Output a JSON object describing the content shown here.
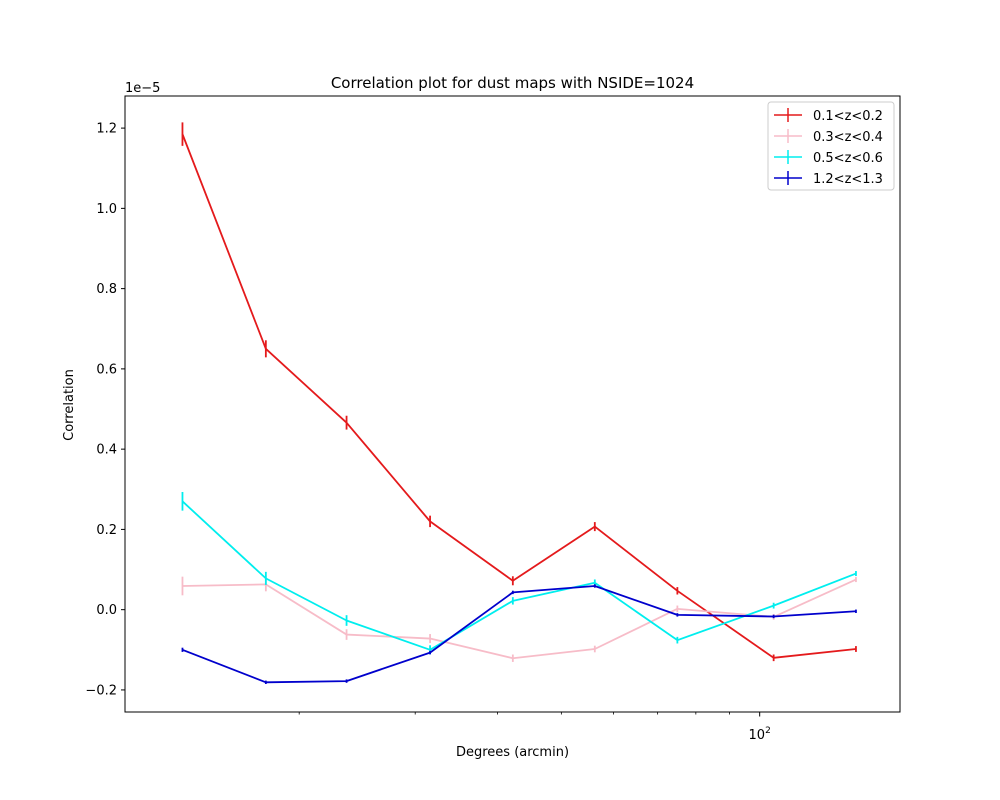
{
  "chart_data": {
    "type": "line",
    "title": "Correlation plot for dust maps with NSIDE=1024",
    "xlabel": "Degrees (arcmin)",
    "ylabel": "Correlation",
    "x_scale": "log",
    "xlim": [
      10.88,
      163.3
    ],
    "ylim": [
      -0.255,
      1.28
    ],
    "y_offset_label": "1e−5",
    "x_tick_major": [
      {
        "value": 100,
        "base": "10",
        "exp": "2"
      }
    ],
    "x_minor_ticks": [
      20,
      30,
      40,
      50,
      60,
      70,
      80,
      90
    ],
    "y_ticks": [
      {
        "value": -0.2,
        "label": "−0.2"
      },
      {
        "value": 0.0,
        "label": "0.0"
      },
      {
        "value": 0.2,
        "label": "0.2"
      },
      {
        "value": 0.4,
        "label": "0.4"
      },
      {
        "value": 0.6,
        "label": "0.6"
      },
      {
        "value": 0.8,
        "label": "0.8"
      },
      {
        "value": 1.0,
        "label": "1.0"
      },
      {
        "value": 1.2,
        "label": "1.2"
      }
    ],
    "x": [
      13.3,
      17.8,
      23.6,
      31.6,
      42.2,
      56.2,
      75.0,
      105.0,
      140.0
    ],
    "legend_position": "top-right",
    "grid": false,
    "series": [
      {
        "name": "0.1<z<0.2",
        "color": "#e41a1c",
        "values": [
          1.185,
          0.65,
          0.466,
          0.22,
          0.072,
          0.207,
          0.047,
          -0.12,
          -0.098
        ],
        "errors": [
          0.028,
          0.02,
          0.016,
          0.013,
          0.01,
          0.01,
          0.008,
          0.007,
          0.006
        ]
      },
      {
        "name": "0.3<z<0.4",
        "color": "#f7bcc8",
        "values": [
          0.059,
          0.063,
          -0.062,
          -0.072,
          -0.121,
          -0.098,
          0.002,
          -0.018,
          0.075
        ],
        "errors": [
          0.022,
          0.016,
          0.012,
          0.01,
          0.008,
          0.007,
          0.007,
          0.006,
          0.005
        ]
      },
      {
        "name": "0.5<z<0.6",
        "color": "#00eeee",
        "values": [
          0.27,
          0.078,
          -0.027,
          -0.1,
          0.022,
          0.067,
          -0.076,
          0.01,
          0.09
        ],
        "errors": [
          0.022,
          0.015,
          0.012,
          0.01,
          0.008,
          0.007,
          0.007,
          0.006,
          0.005
        ]
      },
      {
        "name": "1.2<z<1.3",
        "color": "#0000cc",
        "values": [
          -0.1,
          -0.181,
          -0.178,
          -0.107,
          0.043,
          0.059,
          -0.013,
          -0.017,
          -0.004
        ],
        "errors": [
          0.004,
          0.003,
          0.003,
          0.003,
          0.003,
          0.003,
          0.003,
          0.003,
          0.003
        ]
      }
    ]
  }
}
